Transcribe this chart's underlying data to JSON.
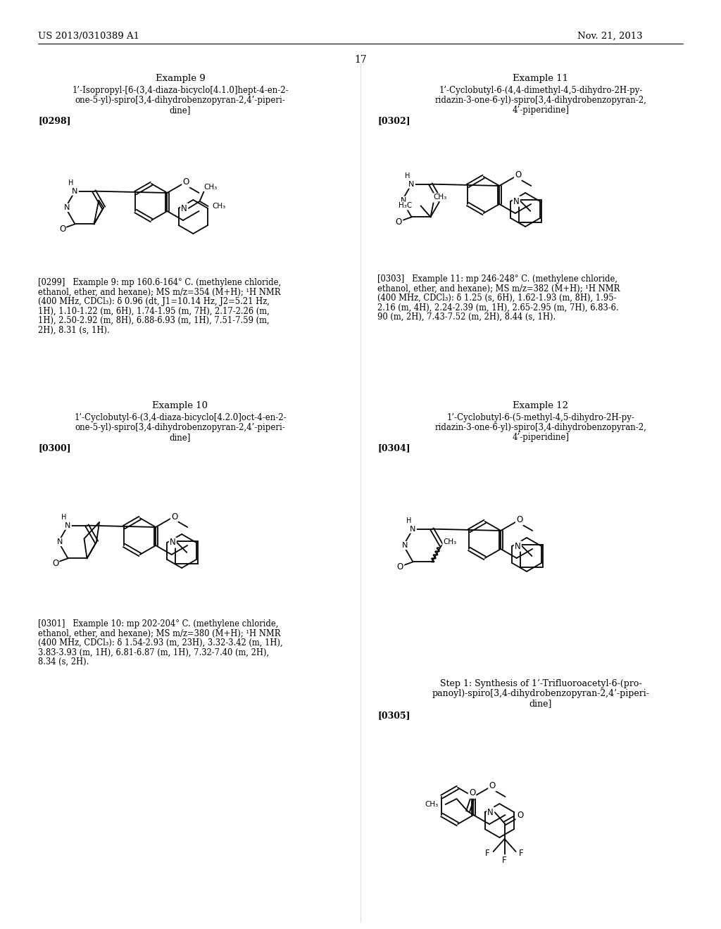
{
  "page_header_left": "US 2013/0310389 A1",
  "page_header_right": "Nov. 21, 2013",
  "page_number": "17",
  "bg_color": "#ffffff",
  "example9_title": "Example 9",
  "example9_name_lines": [
    "1’-Isopropyl-[6-(3,4-diaza-bicyclo[4.1.0]hept-4-en-2-",
    "one-5-yl)-spiro[3,4-dihydrobenzopyran-2,4’-piperi-",
    "dine]"
  ],
  "example9_ref": "[0298]",
  "example9_data_lines": [
    "[0299]   Example 9: mp 160.6-164° C. (methylene chloride,",
    "ethanol, ether, and hexane); MS m/z=354 (M+H); ¹H NMR",
    "(400 MHz, CDCl₃): δ 0.96 (dt, J1=10.14 Hz, J2=5.21 Hz,",
    "1H), 1.10-1.22 (m, 6H), 1.74-1.95 (m, 7H), 2.17-2.26 (m,",
    "1H), 2.50-2.92 (m, 8H), 6.88-6.93 (m, 1H), 7.51-7.59 (m,",
    "2H), 8.31 (s, 1H)."
  ],
  "example10_title": "Example 10",
  "example10_name_lines": [
    "1’-Cyclobutyl-6-(3,4-diaza-bicyclo[4.2.0]oct-4-en-2-",
    "one-5-yl)-spiro[3,4-dihydrobenzopyran-2,4’-piperi-",
    "dine]"
  ],
  "example10_ref": "[0300]",
  "example10_data_lines": [
    "[0301]   Example 10: mp 202-204° C. (methylene chloride,",
    "ethanol, ether, and hexane); MS m/z=380 (M+H); ¹H NMR",
    "(400 MHz, CDCl₃): δ 1.54-2.93 (m, 23H), 3.32-3.42 (m, 1H),",
    "3.83-3.93 (m, 1H), 6.81-6.87 (m, 1H), 7.32-7.40 (m, 2H),",
    "8.34 (s, 2H)."
  ],
  "example11_title": "Example 11",
  "example11_name_lines": [
    "1’-Cyclobutyl-6-(4,4-dimethyl-4,5-dihydro-2H-py-",
    "ridazin-3-one-6-yl)-spiro[3,4-dihydrobenzopyran-2,",
    "4’-piperidine]"
  ],
  "example11_ref": "[0302]",
  "example11_data_lines": [
    "[0303]   Example 11: mp 246-248° C. (methylene chloride,",
    "ethanol, ether, and hexane); MS m/z=382 (M+H); ¹H NMR",
    "(400 MHz, CDCl₃): δ 1.25 (s, 6H), 1.62-1.93 (m, 8H), 1.95-",
    "2.16 (m, 4H), 2.24-2.39 (m, 1H), 2.65-2.95 (m, 7H), 6.83-6.",
    "90 (m, 2H), 7.43-7.52 (m, 2H), 8.44 (s, 1H)."
  ],
  "example12_title": "Example 12",
  "example12_name_lines": [
    "1’-Cyclobutyl-6-(5-methyl-4,5-dihydro-2H-py-",
    "ridazin-3-one-6-yl)-spiro[3,4-dihydrobenzopyran-2,",
    "4’-piperidine]"
  ],
  "example12_ref": "[0304]",
  "step1_title_lines": [
    "Step 1: Synthesis of 1’-Trifluoroacetyl-6-(pro-",
    "panoyl)-spiro[3,4-dihydrobenzopyran-2,4’-piperi-",
    "dine]"
  ],
  "step1_ref": "[0305]"
}
